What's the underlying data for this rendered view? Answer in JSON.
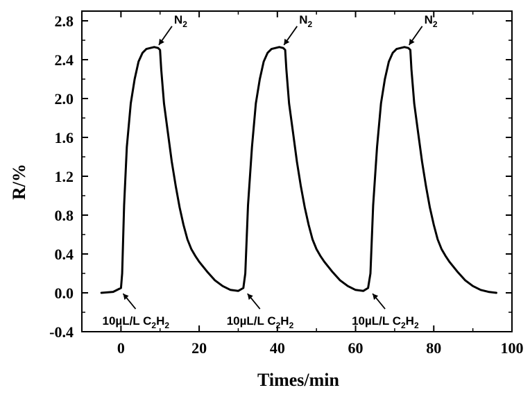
{
  "chart_data": {
    "type": "line",
    "title": "",
    "xlabel": "Times/min",
    "ylabel": "R/%",
    "xlim": [
      -10,
      100
    ],
    "ylim": [
      -0.4,
      2.9
    ],
    "x_ticks": [
      0,
      20,
      40,
      60,
      80,
      100
    ],
    "y_ticks": [
      -0.4,
      0.0,
      0.4,
      0.8,
      1.2,
      1.6,
      2.0,
      2.4,
      2.8
    ],
    "x_tick_labels": [
      "0",
      "20",
      "40",
      "60",
      "80",
      "100"
    ],
    "y_tick_labels": [
      "-0.4",
      "0.0",
      "0.4",
      "0.8",
      "1.2",
      "1.6",
      "2.0",
      "2.4",
      "2.8"
    ],
    "grid": false,
    "legend": "none",
    "series": [
      {
        "color": "#000000",
        "x": [
          -5,
          -2,
          0,
          0.3,
          0.8,
          1.5,
          2.5,
          3.5,
          4.5,
          5.5,
          6.5,
          7.5,
          8.5,
          9.5,
          10.0,
          10.3,
          11,
          12,
          13,
          14,
          15,
          16,
          17,
          18,
          19,
          20,
          22,
          24,
          26,
          28,
          30,
          31.3,
          31.8,
          32.5,
          33.5,
          34.5,
          35.5,
          36.5,
          37.5,
          38.5,
          39.5,
          40.5,
          41.5,
          42.0,
          42.3,
          43,
          44,
          45,
          46,
          47,
          48,
          49,
          50,
          51,
          52,
          54,
          56,
          58,
          60,
          62,
          63.2,
          63.8,
          64.5,
          65.5,
          66.5,
          67.5,
          68.5,
          69.5,
          70.5,
          71.5,
          72.5,
          73.5,
          74.0,
          74.3,
          75,
          76,
          77,
          78,
          79,
          80,
          81,
          82,
          83,
          84,
          86,
          88,
          90,
          92,
          94,
          96
        ],
        "y": [
          0.0,
          0.01,
          0.05,
          0.2,
          0.9,
          1.5,
          1.95,
          2.2,
          2.38,
          2.47,
          2.51,
          2.52,
          2.53,
          2.52,
          2.5,
          2.3,
          1.95,
          1.65,
          1.35,
          1.1,
          0.88,
          0.7,
          0.55,
          0.45,
          0.38,
          0.32,
          0.22,
          0.13,
          0.07,
          0.03,
          0.02,
          0.05,
          0.2,
          0.9,
          1.5,
          1.95,
          2.2,
          2.38,
          2.47,
          2.51,
          2.52,
          2.53,
          2.52,
          2.5,
          2.3,
          1.95,
          1.65,
          1.35,
          1.1,
          0.88,
          0.7,
          0.55,
          0.45,
          0.38,
          0.32,
          0.22,
          0.13,
          0.07,
          0.03,
          0.02,
          0.05,
          0.2,
          0.9,
          1.5,
          1.95,
          2.2,
          2.38,
          2.47,
          2.51,
          2.52,
          2.53,
          2.52,
          2.5,
          2.3,
          1.95,
          1.65,
          1.35,
          1.1,
          0.88,
          0.7,
          0.55,
          0.45,
          0.38,
          0.32,
          0.22,
          0.13,
          0.07,
          0.03,
          0.01,
          0.0
        ]
      }
    ],
    "annotations": [
      {
        "text": "N",
        "sub": "2",
        "point": [
          9.5,
          2.53
        ],
        "kind": "peak"
      },
      {
        "text": "N",
        "sub": "2",
        "point": [
          41.5,
          2.53
        ],
        "kind": "peak"
      },
      {
        "text": "N",
        "sub": "2",
        "point": [
          73.5,
          2.53
        ],
        "kind": "peak"
      },
      {
        "text": "10µL/L C",
        "sub": "2",
        "text2": "H",
        "sub2": "2",
        "point": [
          0.2,
          0.02
        ],
        "kind": "base"
      },
      {
        "text": "10µL/L C",
        "sub": "2",
        "text2": "H",
        "sub2": "2",
        "point": [
          32.0,
          0.02
        ],
        "kind": "base"
      },
      {
        "text": "10µL/L C",
        "sub": "2",
        "text2": "H",
        "sub2": "2",
        "point": [
          64.0,
          0.02
        ],
        "kind": "base"
      }
    ]
  }
}
